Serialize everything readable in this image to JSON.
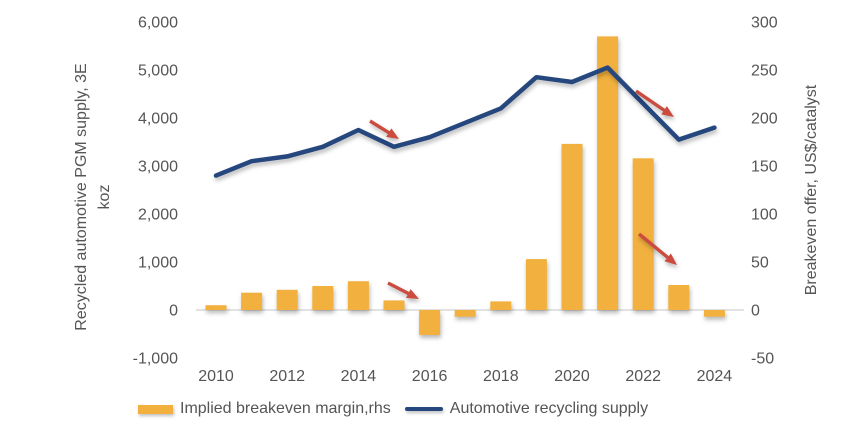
{
  "chart_data": {
    "type": "combo",
    "title": "",
    "x": [
      2010,
      2011,
      2012,
      2013,
      2014,
      2015,
      2016,
      2017,
      2018,
      2019,
      2020,
      2021,
      2022,
      2023,
      2024
    ],
    "x_tick_years": [
      2010,
      2012,
      2014,
      2016,
      2018,
      2020,
      2022,
      2024
    ],
    "series": [
      {
        "name": "Implied breakeven margin,rhs",
        "type": "bar",
        "axis": "right",
        "color": "#F2B13E",
        "values": [
          5,
          18,
          21,
          25,
          30,
          10,
          -26,
          -7,
          9,
          53,
          173,
          285,
          158,
          26,
          -7
        ]
      },
      {
        "name": "Automotive recycling supply",
        "type": "line",
        "axis": "left",
        "color": "#25477E",
        "values": [
          2800,
          3100,
          3200,
          3400,
          3750,
          3400,
          3600,
          3900,
          4200,
          4850,
          4750,
          5050,
          4300,
          3550,
          3800
        ]
      }
    ],
    "left_axis": {
      "label": "Recycled automotive PGM supply, 3E koz",
      "label_lines": [
        "Recycled automotive PGM supply, 3E",
        "koz"
      ],
      "min": -1000,
      "max": 6000,
      "step": 1000
    },
    "right_axis": {
      "label": "Breakeven offer, US$/catalyst",
      "min": -50,
      "max": 300,
      "step": 50
    },
    "grid": false,
    "legend_position": "bottom",
    "annotations": {
      "arrow_color": "#CC4B3F",
      "arrows": [
        {
          "from": [
            370,
            121
          ],
          "to": [
            399,
            139
          ]
        },
        {
          "from": [
            388,
            283
          ],
          "to": [
            419,
            299
          ]
        },
        {
          "from": [
            636,
            91
          ],
          "to": [
            674,
            117
          ]
        },
        {
          "from": [
            639,
            234
          ],
          "to": [
            677,
            265
          ]
        }
      ]
    },
    "colors": {
      "text": "#555555",
      "zero_line": "#D9D9D9"
    }
  }
}
